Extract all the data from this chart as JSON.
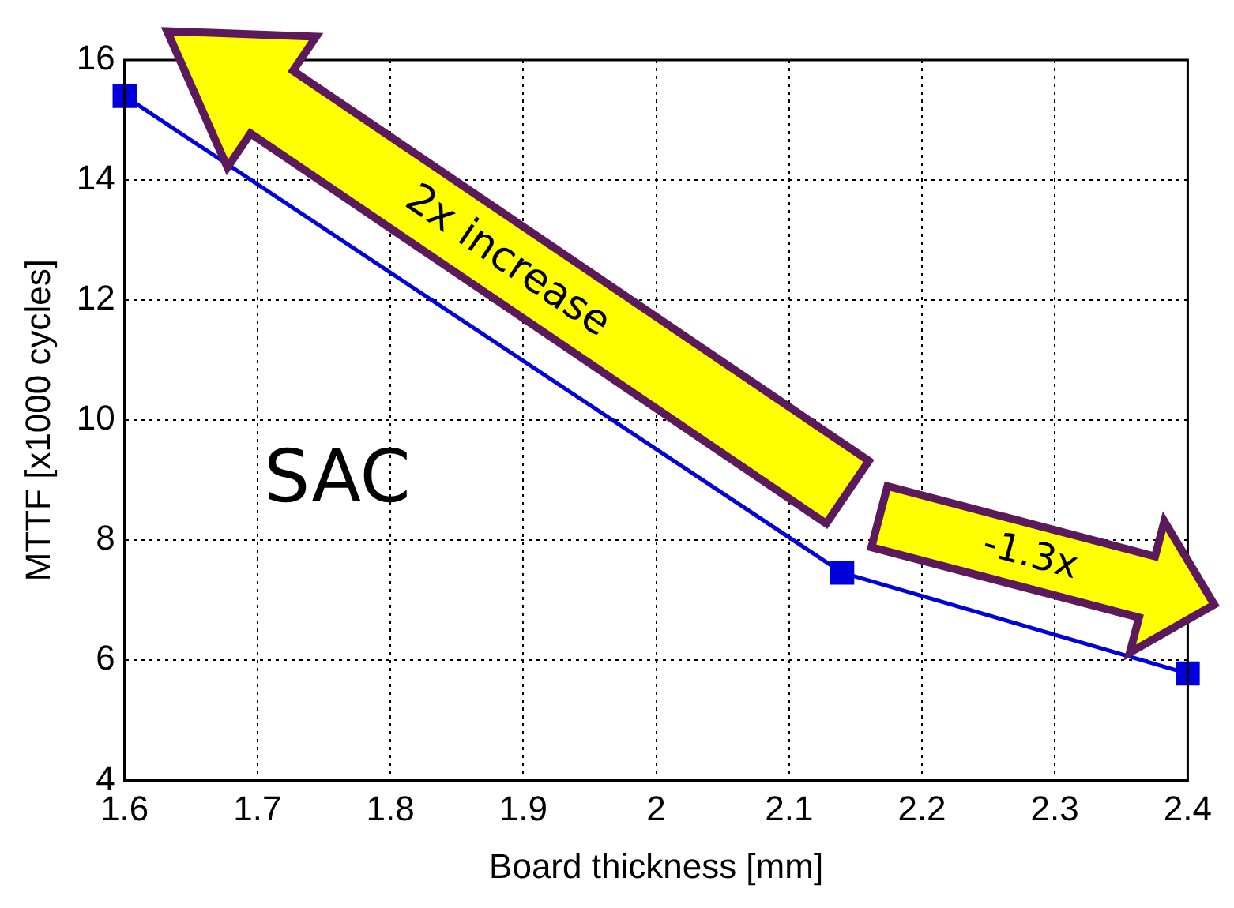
{
  "chart_data": {
    "type": "line",
    "xlabel": "Board thickness [mm]",
    "ylabel": "MTTF [x1000 cycles]",
    "x": [
      1.6,
      2.14,
      2.4
    ],
    "series": [
      {
        "color": "#0000dd",
        "values": [
          15.4,
          7.46,
          5.78
        ]
      }
    ],
    "xlim": [
      1.6,
      2.4
    ],
    "xticks": [
      1.6,
      1.7,
      1.8,
      1.9,
      2,
      2.1,
      2.2,
      2.3,
      2.4
    ],
    "ylim": [
      4,
      16
    ],
    "yticks": [
      4,
      6,
      8,
      10,
      12,
      14,
      16
    ],
    "grid": true,
    "marker": "square",
    "line_style": "solid",
    "legend": false,
    "annotations": [
      "SAC",
      "2x increase",
      "-1.3x"
    ]
  }
}
